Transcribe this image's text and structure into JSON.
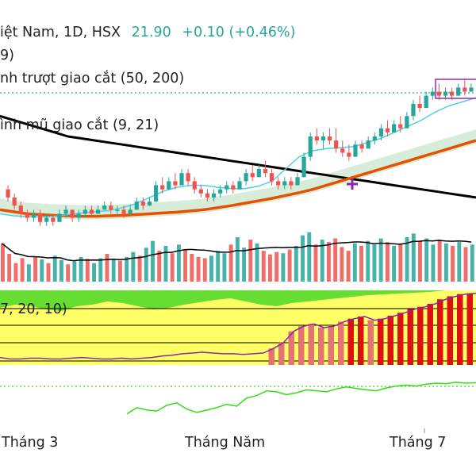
{
  "header": {
    "symbol": "iệt Nam, 1D, HSX",
    "price": "21.90",
    "change": "+0.10 (+0.46%)"
  },
  "indicators": {
    "ind1": "9)",
    "ind2": "nh trượt giao cắt (50, 200)",
    "ind3": "ình mũ giao cắt (9, 21)",
    "ind4": "7, 20, 10)"
  },
  "xaxis": {
    "labels": [
      "Tháng 3",
      "Tháng Năm",
      "Tháng 7"
    ]
  },
  "colors": {
    "up": "#26a69a",
    "down": "#ef5350",
    "price_text": "#26a69a",
    "sma_long": "#000000",
    "ema_slow": "#e65100",
    "ema_fast": "#4dd0e1",
    "cross_marker": "#8e24aa",
    "cloud": "#c8e6c9",
    "stoch_bg_yellow": "#ffff66",
    "stoch_bg_green": "#66dd33",
    "stoch_line": "#8e24aa",
    "rsi_line": "#33dd11",
    "dotted_line": "#26a69a"
  },
  "chart_data": {
    "type": "candlestick",
    "candles": [
      [
        19.4,
        19.5,
        19.1,
        19.2
      ],
      [
        19.2,
        19.3,
        18.9,
        19.0
      ],
      [
        19.0,
        19.1,
        18.7,
        18.8
      ],
      [
        18.8,
        18.9,
        18.6,
        18.7
      ],
      [
        18.7,
        18.9,
        18.6,
        18.8
      ],
      [
        18.8,
        18.9,
        18.5,
        18.6
      ],
      [
        18.6,
        18.8,
        18.5,
        18.7
      ],
      [
        18.7,
        18.8,
        18.5,
        18.6
      ],
      [
        18.6,
        18.9,
        18.6,
        18.8
      ],
      [
        18.8,
        19.0,
        18.7,
        18.9
      ],
      [
        18.9,
        18.9,
        18.6,
        18.7
      ],
      [
        18.7,
        18.9,
        18.6,
        18.8
      ],
      [
        18.8,
        19.0,
        18.7,
        18.9
      ],
      [
        18.9,
        19.0,
        18.7,
        18.8
      ],
      [
        18.8,
        19.0,
        18.8,
        18.9
      ],
      [
        18.9,
        19.1,
        18.9,
        19.0
      ],
      [
        19.0,
        19.1,
        18.8,
        18.9
      ],
      [
        18.9,
        19.0,
        18.8,
        18.9
      ],
      [
        18.9,
        19.0,
        18.7,
        18.8
      ],
      [
        18.8,
        19.0,
        18.8,
        18.9
      ],
      [
        18.9,
        19.2,
        18.9,
        19.1
      ],
      [
        19.1,
        19.2,
        18.9,
        19.0
      ],
      [
        19.0,
        19.2,
        19.0,
        19.1
      ],
      [
        19.1,
        19.6,
        19.1,
        19.5
      ],
      [
        19.5,
        19.7,
        19.3,
        19.4
      ],
      [
        19.4,
        19.7,
        19.4,
        19.6
      ],
      [
        19.6,
        19.8,
        19.4,
        19.5
      ],
      [
        19.5,
        19.9,
        19.5,
        19.8
      ],
      [
        19.8,
        19.9,
        19.5,
        19.6
      ],
      [
        19.6,
        19.7,
        19.3,
        19.4
      ],
      [
        19.4,
        19.5,
        19.2,
        19.3
      ],
      [
        19.3,
        19.4,
        19.1,
        19.2
      ],
      [
        19.2,
        19.4,
        19.1,
        19.3
      ],
      [
        19.3,
        19.5,
        19.2,
        19.4
      ],
      [
        19.4,
        19.6,
        19.3,
        19.5
      ],
      [
        19.5,
        19.6,
        19.3,
        19.4
      ],
      [
        19.4,
        19.7,
        19.4,
        19.6
      ],
      [
        19.6,
        19.9,
        19.5,
        19.8
      ],
      [
        19.8,
        20.0,
        19.6,
        19.7
      ],
      [
        19.7,
        20.0,
        19.7,
        19.9
      ],
      [
        19.9,
        20.1,
        19.7,
        19.8
      ],
      [
        19.8,
        19.9,
        19.5,
        19.6
      ],
      [
        19.6,
        19.7,
        19.4,
        19.5
      ],
      [
        19.5,
        19.7,
        19.4,
        19.6
      ],
      [
        19.6,
        19.7,
        19.4,
        19.5
      ],
      [
        19.5,
        19.8,
        19.5,
        19.7
      ],
      [
        19.7,
        20.3,
        19.7,
        20.2
      ],
      [
        20.2,
        20.8,
        20.1,
        20.7
      ],
      [
        20.7,
        20.9,
        20.5,
        20.6
      ],
      [
        20.6,
        20.8,
        20.4,
        20.7
      ],
      [
        20.7,
        20.9,
        20.5,
        20.6
      ],
      [
        20.6,
        20.9,
        20.3,
        20.4
      ],
      [
        20.4,
        20.6,
        20.2,
        20.3
      ],
      [
        20.3,
        20.5,
        20.1,
        20.2
      ],
      [
        20.2,
        20.6,
        20.2,
        20.5
      ],
      [
        20.5,
        20.6,
        20.3,
        20.4
      ],
      [
        20.4,
        20.7,
        20.4,
        20.6
      ],
      [
        20.6,
        20.8,
        20.5,
        20.7
      ],
      [
        20.7,
        21.0,
        20.6,
        20.9
      ],
      [
        20.9,
        21.1,
        20.7,
        20.8
      ],
      [
        20.8,
        21.1,
        20.8,
        21.0
      ],
      [
        21.0,
        21.2,
        20.8,
        20.9
      ],
      [
        20.9,
        21.3,
        20.9,
        21.2
      ],
      [
        21.2,
        21.6,
        21.1,
        21.5
      ],
      [
        21.5,
        21.7,
        21.3,
        21.4
      ],
      [
        21.4,
        21.8,
        21.4,
        21.7
      ],
      [
        21.7,
        21.9,
        21.6,
        21.8
      ],
      [
        21.8,
        22.0,
        21.6,
        21.7
      ],
      [
        21.7,
        21.9,
        21.6,
        21.8
      ],
      [
        21.8,
        21.9,
        21.6,
        21.7
      ],
      [
        21.7,
        22.0,
        21.7,
        21.9
      ],
      [
        21.9,
        22.1,
        21.7,
        21.8
      ],
      [
        21.8,
        22.0,
        21.8,
        21.9
      ]
    ],
    "sma_long": [
      21.2,
      21.1,
      21.0,
      20.9,
      20.8,
      20.7,
      20.65,
      20.6,
      20.55,
      20.5,
      20.45,
      20.4,
      20.35,
      20.3,
      20.25,
      20.2,
      20.15,
      20.1,
      20.05,
      20.0,
      19.95,
      19.9,
      19.85,
      19.8,
      19.75,
      19.7,
      19.65,
      19.6,
      19.55,
      19.5,
      19.45,
      19.4,
      19.35,
      19.3,
      19.25,
      19.2
    ],
    "ema_slow": [
      18.9,
      18.85,
      18.8,
      18.78,
      18.76,
      18.75,
      18.74,
      18.74,
      18.75,
      18.76,
      18.78,
      18.8,
      18.82,
      18.84,
      18.87,
      18.9,
      18.95,
      19.0,
      19.06,
      19.12,
      19.18,
      19.25,
      19.32,
      19.4,
      19.5,
      19.6,
      19.7,
      19.8,
      19.9,
      20.0,
      20.1,
      20.2,
      20.3,
      20.4,
      20.5,
      20.6
    ],
    "ema_fast": [
      18.8,
      18.75,
      18.73,
      18.72,
      18.74,
      18.78,
      18.82,
      18.85,
      18.88,
      18.95,
      19.05,
      19.2,
      19.35,
      19.45,
      19.5,
      19.5,
      19.45,
      19.42,
      19.42,
      19.48,
      19.6,
      19.9,
      20.2,
      20.35,
      20.4,
      20.42,
      20.45,
      20.55,
      20.65,
      20.8,
      20.95,
      21.1,
      21.3,
      21.45,
      21.55,
      21.65
    ],
    "volume": [
      62,
      45,
      30,
      38,
      28,
      40,
      36,
      30,
      42,
      35,
      28,
      33,
      40,
      37,
      30,
      38,
      45,
      36,
      34,
      40,
      48,
      42,
      55,
      66,
      50,
      58,
      46,
      60,
      52,
      45,
      40,
      38,
      42,
      50,
      46,
      60,
      72,
      55,
      68,
      62,
      50,
      44,
      48,
      46,
      52,
      58,
      75,
      80,
      60,
      68,
      64,
      70,
      56,
      50,
      62,
      58,
      66,
      60,
      70,
      64,
      58,
      62,
      72,
      78,
      66,
      70,
      60,
      68,
      62,
      58,
      64,
      56,
      60
    ],
    "stoch_k": [
      10,
      8,
      8,
      9,
      9,
      8,
      8,
      9,
      10,
      9,
      8,
      8,
      9,
      8,
      9,
      10,
      12,
      13,
      15,
      16,
      17,
      16,
      15,
      15,
      14,
      15,
      16,
      22,
      30,
      45,
      52,
      55,
      50,
      52,
      58,
      62,
      65,
      60,
      62,
      66,
      70,
      75,
      78,
      82,
      88,
      92,
      95,
      96
    ],
    "rsi": [
      22,
      35,
      30,
      28,
      40,
      45,
      32,
      25,
      30,
      35,
      42,
      38,
      55,
      60,
      70,
      68,
      62,
      66,
      72,
      70,
      68,
      74,
      78,
      75,
      72,
      70,
      76,
      80,
      82,
      80,
      84,
      86,
      85,
      88,
      86,
      87
    ],
    "ylim": [
      18.4,
      22.2
    ]
  }
}
